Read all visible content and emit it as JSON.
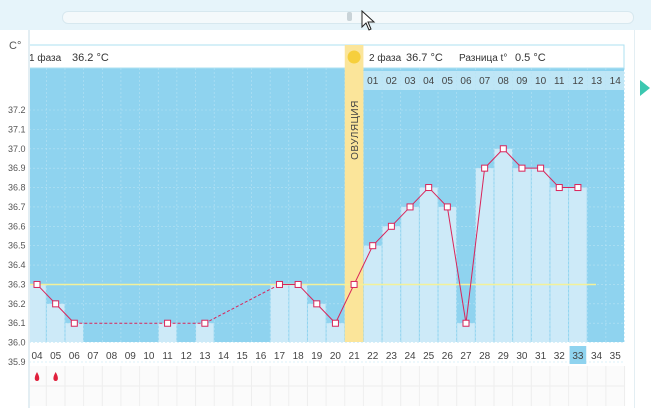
{
  "header": {
    "y_unit": "C°",
    "phase1_label": "1 фаза",
    "phase1_value": "36.2 °C",
    "phase2_label": "2 фаза",
    "phase2_value": "36.7 °C",
    "diff_label": "Разница t°",
    "diff_value": "0.5 °C"
  },
  "ovulation_label": "ОВУЛЯЦИЯ",
  "colors": {
    "plot_bg": "#8fd3ef",
    "bar": "#cdeaf8",
    "line": "#d9245a",
    "ovulation": "#fbe59a",
    "coverline": "#f3f19a",
    "highlight_day": "#8fd3ef"
  },
  "chart_data": {
    "type": "line",
    "title": "",
    "ylim": [
      35.9,
      37.2
    ],
    "yticks": [
      "37.2",
      "37.1",
      "37.0",
      "36.9",
      "36.8",
      "36.7",
      "36.6",
      "36.5",
      "36.4",
      "36.3",
      "36.2",
      "36.1",
      "36.0",
      "35.9"
    ],
    "x": [
      "04",
      "05",
      "06",
      "07",
      "08",
      "09",
      "10",
      "11",
      "12",
      "13",
      "14",
      "15",
      "16",
      "17",
      "18",
      "19",
      "20",
      "21",
      "22",
      "23",
      "24",
      "25",
      "26",
      "27",
      "28",
      "29",
      "30",
      "31",
      "32",
      "33",
      "34",
      "35"
    ],
    "values": [
      36.3,
      36.2,
      36.1,
      null,
      null,
      null,
      null,
      36.1,
      null,
      36.1,
      null,
      null,
      null,
      36.3,
      36.3,
      36.2,
      36.1,
      36.3,
      36.5,
      36.6,
      36.7,
      36.8,
      36.7,
      36.1,
      36.9,
      37.0,
      36.9,
      36.9,
      36.8,
      36.8,
      null,
      null
    ],
    "coverline": 36.3,
    "ovulation_day": "21",
    "highlighted_day": "33",
    "phase2_days": [
      "01",
      "02",
      "03",
      "04",
      "05",
      "06",
      "07",
      "08",
      "09",
      "10",
      "11",
      "12",
      "13",
      "14"
    ],
    "menstruation_days": [
      "04",
      "05"
    ]
  }
}
